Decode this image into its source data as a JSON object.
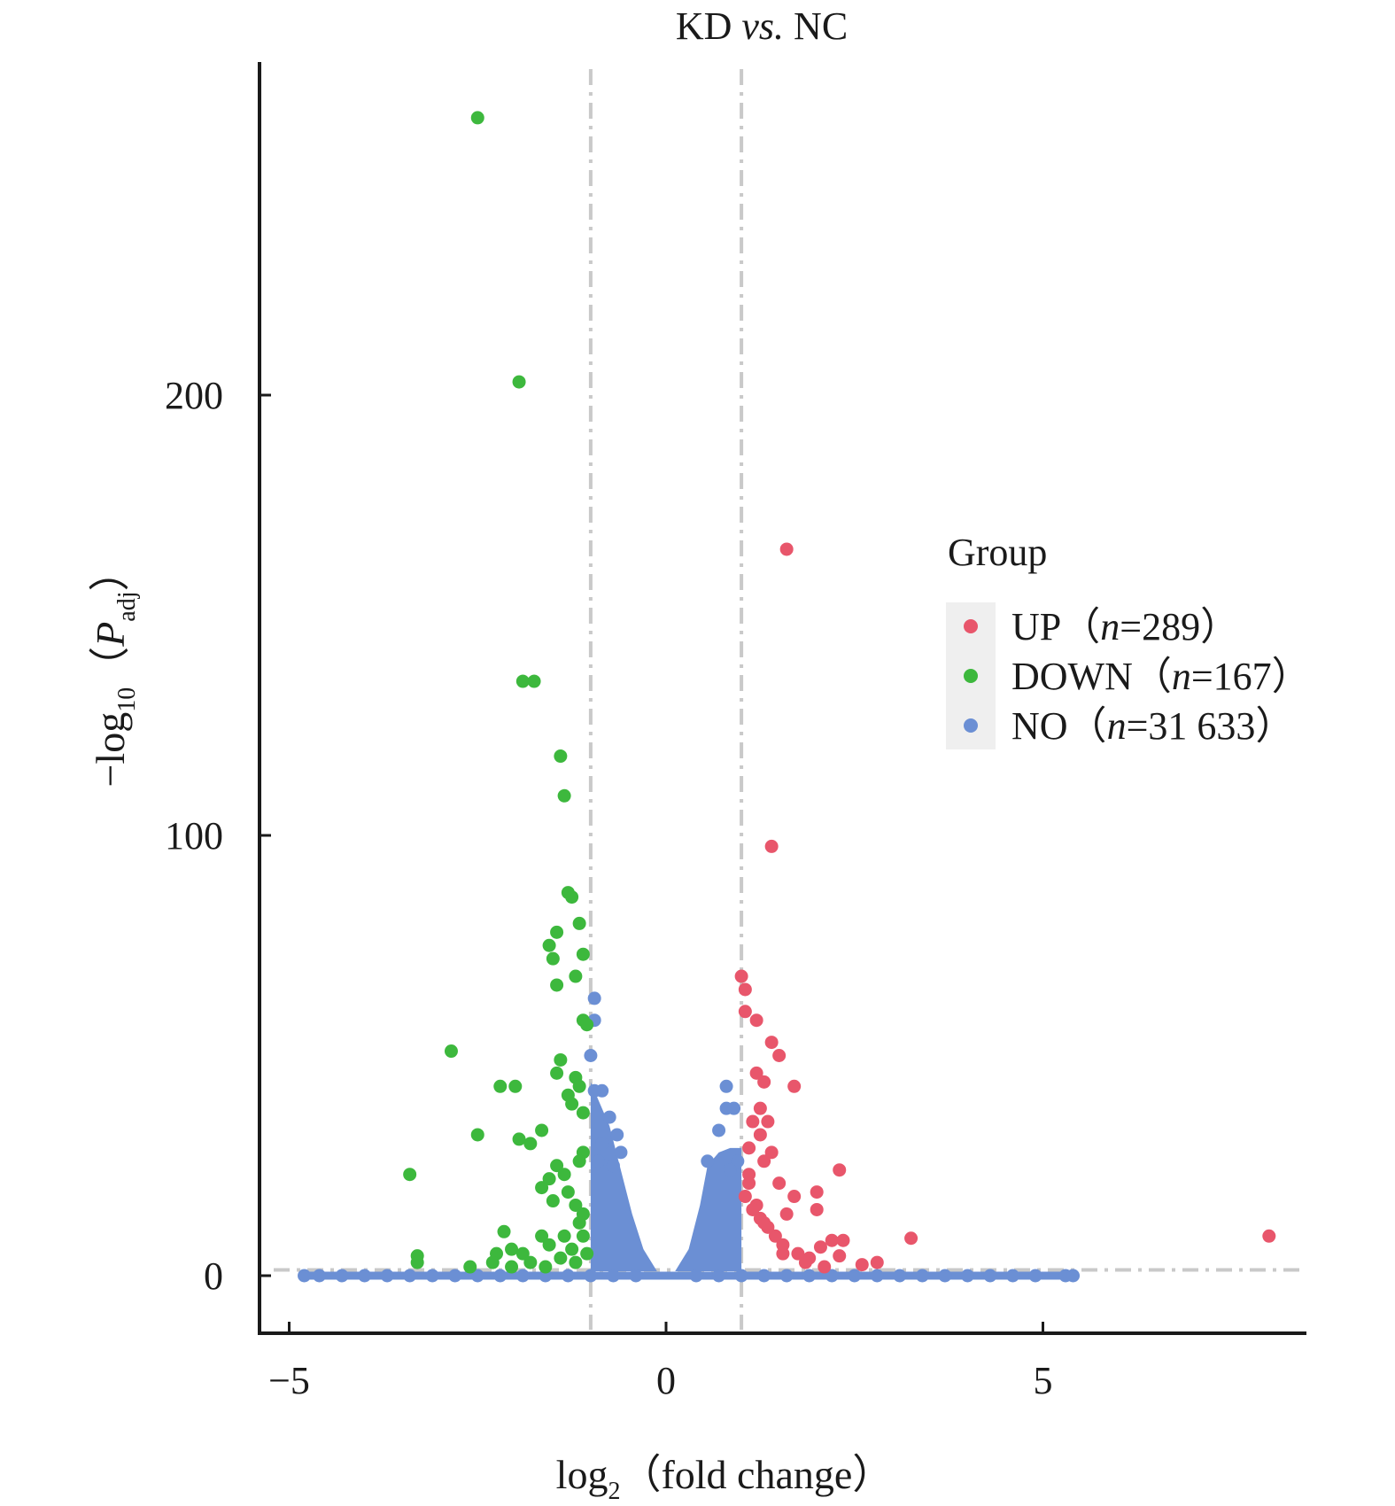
{
  "chart_data": {
    "type": "scatter",
    "title": "KD vs. NC",
    "title_parts": {
      "left": "KD ",
      "italic": "vs.",
      "right": " NC"
    },
    "xlabel": "log2（fold change）",
    "xlabel_parts": {
      "pre": "log",
      "sub": "2",
      "post": "（fold change）"
    },
    "ylabel": "−log10（Padj）",
    "ylabel_parts": {
      "pre": "−log",
      "sub": "10",
      "mid": "（",
      "italic": "P",
      "italic_sub": "adj",
      "post": "）"
    },
    "xlim": [
      -5.4,
      8.5
    ],
    "ylim": [
      -13,
      276
    ],
    "x_ticks": [
      -5,
      0,
      5
    ],
    "x_tick_labels": [
      "−5",
      "0",
      "5"
    ],
    "y_ticks": [
      0,
      100,
      200
    ],
    "y_tick_labels": [
      "0",
      "100",
      "200"
    ],
    "thresholds": {
      "log2fc": [
        -1,
        1
      ],
      "neg_log10_padj": 1.3
    },
    "grid": false,
    "legend": {
      "title": "Group",
      "position": "right",
      "entries": [
        {
          "key": "UP",
          "name": "UP",
          "count": "289",
          "color": "#e8566b"
        },
        {
          "key": "DOWN",
          "name": "DOWN",
          "count": "167",
          "color": "#3db83d"
        },
        {
          "key": "NO",
          "name": "NO",
          "count": "31 633",
          "color": "#6b8fd4"
        }
      ]
    },
    "series": [
      {
        "name": "UP",
        "color": "#e8566b",
        "points": [
          [
            1.6,
            165
          ],
          [
            1.4,
            97.5
          ],
          [
            1.0,
            68
          ],
          [
            1.05,
            65
          ],
          [
            1.05,
            60
          ],
          [
            1.2,
            58
          ],
          [
            1.4,
            53
          ],
          [
            1.5,
            50
          ],
          [
            1.7,
            43
          ],
          [
            1.3,
            44
          ],
          [
            1.2,
            46
          ],
          [
            1.25,
            38
          ],
          [
            1.35,
            35
          ],
          [
            1.15,
            35
          ],
          [
            1.25,
            32
          ],
          [
            1.1,
            29
          ],
          [
            1.4,
            28
          ],
          [
            1.3,
            26
          ],
          [
            2.3,
            24
          ],
          [
            1.1,
            23
          ],
          [
            1.5,
            21
          ],
          [
            2.0,
            19
          ],
          [
            1.7,
            18
          ],
          [
            2.0,
            15
          ],
          [
            1.2,
            16
          ],
          [
            1.6,
            14
          ],
          [
            2.2,
            8
          ],
          [
            2.35,
            8
          ],
          [
            3.25,
            8.5
          ],
          [
            8.0,
            9
          ],
          [
            2.8,
            3
          ],
          [
            2.6,
            2.5
          ],
          [
            2.3,
            4.5
          ],
          [
            2.05,
            6.5
          ],
          [
            1.9,
            4
          ],
          [
            1.75,
            5
          ],
          [
            1.55,
            7
          ],
          [
            1.45,
            9
          ],
          [
            1.35,
            11
          ],
          [
            1.25,
            13
          ],
          [
            1.15,
            15
          ],
          [
            1.05,
            18
          ],
          [
            1.1,
            21
          ],
          [
            1.3,
            12
          ],
          [
            1.55,
            5
          ],
          [
            1.85,
            3
          ],
          [
            2.1,
            2
          ]
        ]
      },
      {
        "name": "DOWN",
        "color": "#3db83d",
        "points": [
          [
            -2.5,
            263
          ],
          [
            -1.95,
            203
          ],
          [
            -1.9,
            135
          ],
          [
            -1.75,
            135
          ],
          [
            -1.4,
            118
          ],
          [
            -1.35,
            109
          ],
          [
            -1.3,
            87
          ],
          [
            -1.25,
            86
          ],
          [
            -1.15,
            80
          ],
          [
            -1.45,
            78
          ],
          [
            -1.55,
            75
          ],
          [
            -1.5,
            72
          ],
          [
            -1.1,
            73
          ],
          [
            -1.2,
            68
          ],
          [
            -1.45,
            66
          ],
          [
            -1.1,
            58
          ],
          [
            -1.05,
            57
          ],
          [
            -2.85,
            51
          ],
          [
            -1.4,
            49
          ],
          [
            -1.45,
            46
          ],
          [
            -1.2,
            45
          ],
          [
            -1.15,
            43
          ],
          [
            -2.2,
            43
          ],
          [
            -2.0,
            43
          ],
          [
            -1.3,
            41
          ],
          [
            -1.25,
            39
          ],
          [
            -1.1,
            37
          ],
          [
            -1.65,
            33
          ],
          [
            -2.5,
            32
          ],
          [
            -1.95,
            31
          ],
          [
            -1.8,
            30
          ],
          [
            -1.1,
            28
          ],
          [
            -1.15,
            26
          ],
          [
            -1.45,
            25
          ],
          [
            -1.35,
            23
          ],
          [
            -3.4,
            23
          ],
          [
            -1.55,
            22
          ],
          [
            -1.65,
            20
          ],
          [
            -1.3,
            19
          ],
          [
            -1.5,
            17
          ],
          [
            -1.2,
            16
          ],
          [
            -1.1,
            14
          ],
          [
            -1.15,
            12
          ],
          [
            -1.35,
            9
          ],
          [
            -2.15,
            10
          ],
          [
            -1.65,
            9
          ],
          [
            -1.55,
            7
          ],
          [
            -2.05,
            6
          ],
          [
            -1.9,
            5
          ],
          [
            -2.25,
            5
          ],
          [
            -3.3,
            4.5
          ],
          [
            -2.3,
            3
          ],
          [
            -2.05,
            2
          ],
          [
            -1.8,
            3
          ],
          [
            -1.4,
            4
          ],
          [
            -1.25,
            6
          ],
          [
            -1.05,
            5
          ],
          [
            -1.1,
            9
          ],
          [
            -1.2,
            3
          ],
          [
            -1.6,
            2
          ],
          [
            -2.6,
            2
          ],
          [
            -3.3,
            3
          ]
        ]
      },
      {
        "name": "NO",
        "color": "#6b8fd4",
        "points": [
          [
            -0.95,
            63
          ],
          [
            -0.95,
            58
          ],
          [
            -1.0,
            50
          ],
          [
            -0.85,
            42
          ],
          [
            -0.95,
            42
          ],
          [
            -0.75,
            36
          ],
          [
            -0.65,
            32
          ],
          [
            -0.6,
            28
          ],
          [
            -0.7,
            25
          ],
          [
            -0.9,
            26
          ],
          [
            -0.85,
            30
          ],
          [
            0.8,
            43
          ],
          [
            0.8,
            38
          ],
          [
            0.9,
            38
          ],
          [
            0.7,
            33
          ],
          [
            0.95,
            26
          ],
          [
            0.55,
            26
          ],
          [
            0.85,
            24
          ],
          [
            -4.8,
            0
          ],
          [
            -4.6,
            0
          ],
          [
            -4.3,
            0
          ],
          [
            -4.0,
            0
          ],
          [
            -3.7,
            0
          ],
          [
            -3.4,
            0
          ],
          [
            -3.1,
            0
          ],
          [
            -2.8,
            0
          ],
          [
            -2.5,
            0
          ],
          [
            -2.2,
            0
          ],
          [
            -1.9,
            0
          ],
          [
            -1.6,
            0
          ],
          [
            -1.3,
            0
          ],
          [
            -1.0,
            0
          ],
          [
            -0.7,
            0
          ],
          [
            -0.4,
            0
          ],
          [
            0.4,
            0
          ],
          [
            0.7,
            0
          ],
          [
            1.0,
            0
          ],
          [
            1.3,
            0
          ],
          [
            1.6,
            0
          ],
          [
            1.9,
            0
          ],
          [
            2.2,
            0
          ],
          [
            2.5,
            0
          ],
          [
            2.8,
            0
          ],
          [
            3.1,
            0
          ],
          [
            3.4,
            0
          ],
          [
            3.7,
            0
          ],
          [
            4.0,
            0
          ],
          [
            4.3,
            0
          ],
          [
            4.6,
            0
          ],
          [
            4.9,
            0
          ],
          [
            5.3,
            0
          ],
          [
            5.4,
            0
          ]
        ]
      }
    ]
  }
}
